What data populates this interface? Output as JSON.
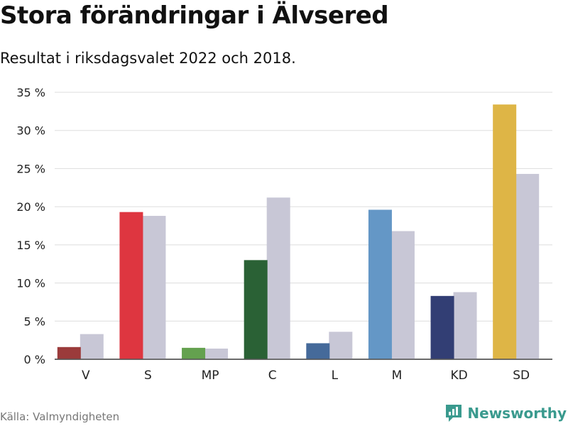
{
  "title": "Stora förändringar i Älvsered",
  "subtitle": "Resultat i riksdagsvalet 2022 och 2018.",
  "source": "Källa: Valmyndigheten",
  "brand": "Newsworthy",
  "colors": {
    "previous": "#c8c7d6",
    "grid": "#dddddd",
    "brand": "#3a9a8e",
    "parties": {
      "V": "#9b3b3b",
      "S": "#de3640",
      "MP": "#64a14f",
      "C": "#2a6135",
      "L": "#456a9a",
      "M": "#6497c6",
      "KD": "#323e74",
      "SD": "#deb546"
    }
  },
  "chart_data": {
    "type": "bar",
    "title": "Stora förändringar i Älvsered",
    "subtitle": "Resultat i riksdagsvalet 2022 och 2018.",
    "categories": [
      "V",
      "S",
      "MP",
      "C",
      "L",
      "M",
      "KD",
      "SD"
    ],
    "series": [
      {
        "name": "2022",
        "values": [
          1.6,
          19.3,
          1.5,
          13.0,
          2.1,
          19.6,
          8.3,
          33.4
        ]
      },
      {
        "name": "2018",
        "values": [
          3.3,
          18.8,
          1.4,
          21.2,
          3.6,
          16.8,
          8.8,
          24.3
        ]
      }
    ],
    "yticks": [
      0,
      5,
      10,
      15,
      20,
      25,
      30,
      35
    ],
    "ytick_labels": [
      "0 %",
      "5 %",
      "10 %",
      "15 %",
      "20 %",
      "25 %",
      "30 %",
      "35 %"
    ],
    "ylim": [
      0,
      35
    ],
    "xlabel": "",
    "ylabel": "",
    "grid": true,
    "legend": "none"
  }
}
